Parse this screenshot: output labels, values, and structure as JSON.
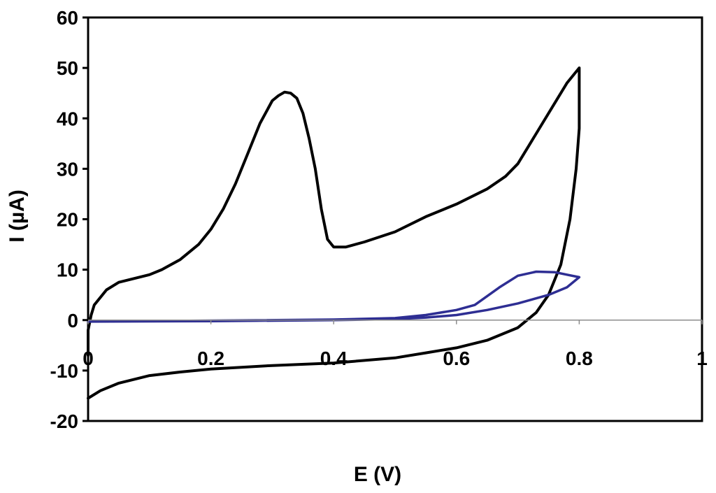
{
  "chart_data": {
    "type": "line",
    "title": "",
    "xlabel": "E (V)",
    "ylabel": "I (µA)",
    "xlim": [
      0,
      1
    ],
    "ylim": [
      -20,
      60
    ],
    "x_ticks": [
      0,
      0.2,
      0.4,
      0.6,
      0.8,
      1
    ],
    "x_tick_labels": [
      "0",
      "0.2",
      "0.4",
      "0.6",
      "0.8",
      "1"
    ],
    "y_ticks": [
      -20,
      -10,
      0,
      10,
      20,
      30,
      40,
      50,
      60
    ],
    "y_tick_labels": [
      "-20",
      "-10",
      "0",
      "10",
      "20",
      "30",
      "40",
      "50",
      "60"
    ],
    "grid": false,
    "legend": "none",
    "series": [
      {
        "color": "#000000",
        "points": [
          [
            0.0,
            -15.5
          ],
          [
            0.02,
            -14.0
          ],
          [
            0.05,
            -12.5
          ],
          [
            0.1,
            -11.0
          ],
          [
            0.15,
            -10.3
          ],
          [
            0.2,
            -9.7
          ],
          [
            0.3,
            -9.0
          ],
          [
            0.4,
            -8.5
          ],
          [
            0.5,
            -7.5
          ],
          [
            0.55,
            -6.5
          ],
          [
            0.6,
            -5.5
          ],
          [
            0.65,
            -4.0
          ],
          [
            0.7,
            -1.5
          ],
          [
            0.73,
            1.5
          ],
          [
            0.75,
            5.0
          ],
          [
            0.77,
            11.0
          ],
          [
            0.785,
            20.0
          ],
          [
            0.795,
            30.0
          ],
          [
            0.8,
            38.0
          ],
          [
            0.8,
            50.0
          ],
          [
            0.78,
            47.0
          ],
          [
            0.76,
            43.0
          ],
          [
            0.74,
            39.0
          ],
          [
            0.72,
            35.0
          ],
          [
            0.7,
            31.0
          ],
          [
            0.68,
            28.5
          ],
          [
            0.65,
            26.0
          ],
          [
            0.6,
            23.0
          ],
          [
            0.55,
            20.5
          ],
          [
            0.5,
            17.5
          ],
          [
            0.45,
            15.5
          ],
          [
            0.42,
            14.5
          ],
          [
            0.4,
            14.5
          ],
          [
            0.39,
            16.0
          ],
          [
            0.38,
            22.0
          ],
          [
            0.37,
            30.0
          ],
          [
            0.36,
            36.0
          ],
          [
            0.35,
            41.0
          ],
          [
            0.34,
            44.0
          ],
          [
            0.33,
            45.0
          ],
          [
            0.32,
            45.2
          ],
          [
            0.31,
            44.5
          ],
          [
            0.3,
            43.5
          ],
          [
            0.28,
            39.0
          ],
          [
            0.26,
            33.0
          ],
          [
            0.24,
            27.0
          ],
          [
            0.22,
            22.0
          ],
          [
            0.2,
            18.0
          ],
          [
            0.18,
            15.0
          ],
          [
            0.15,
            12.0
          ],
          [
            0.12,
            10.0
          ],
          [
            0.1,
            9.0
          ],
          [
            0.05,
            7.5
          ],
          [
            0.03,
            6.0
          ],
          [
            0.01,
            3.0
          ],
          [
            0.005,
            1.0
          ],
          [
            0.0,
            -2.0
          ],
          [
            0.0,
            -7.0
          ]
        ]
      },
      {
        "color": "#2E2E93",
        "points": [
          [
            0.0,
            -0.3
          ],
          [
            0.2,
            -0.2
          ],
          [
            0.4,
            0.0
          ],
          [
            0.5,
            0.2
          ],
          [
            0.55,
            0.5
          ],
          [
            0.6,
            1.0
          ],
          [
            0.65,
            2.0
          ],
          [
            0.7,
            3.3
          ],
          [
            0.75,
            5.0
          ],
          [
            0.78,
            6.5
          ],
          [
            0.8,
            8.5
          ],
          [
            0.78,
            9.0
          ],
          [
            0.76,
            9.5
          ],
          [
            0.73,
            9.6
          ],
          [
            0.7,
            8.8
          ],
          [
            0.67,
            6.5
          ],
          [
            0.63,
            3.0
          ],
          [
            0.6,
            2.0
          ],
          [
            0.55,
            1.0
          ],
          [
            0.5,
            0.4
          ],
          [
            0.4,
            0.1
          ],
          [
            0.2,
            -0.1
          ],
          [
            0.0,
            -0.3
          ]
        ]
      }
    ]
  }
}
